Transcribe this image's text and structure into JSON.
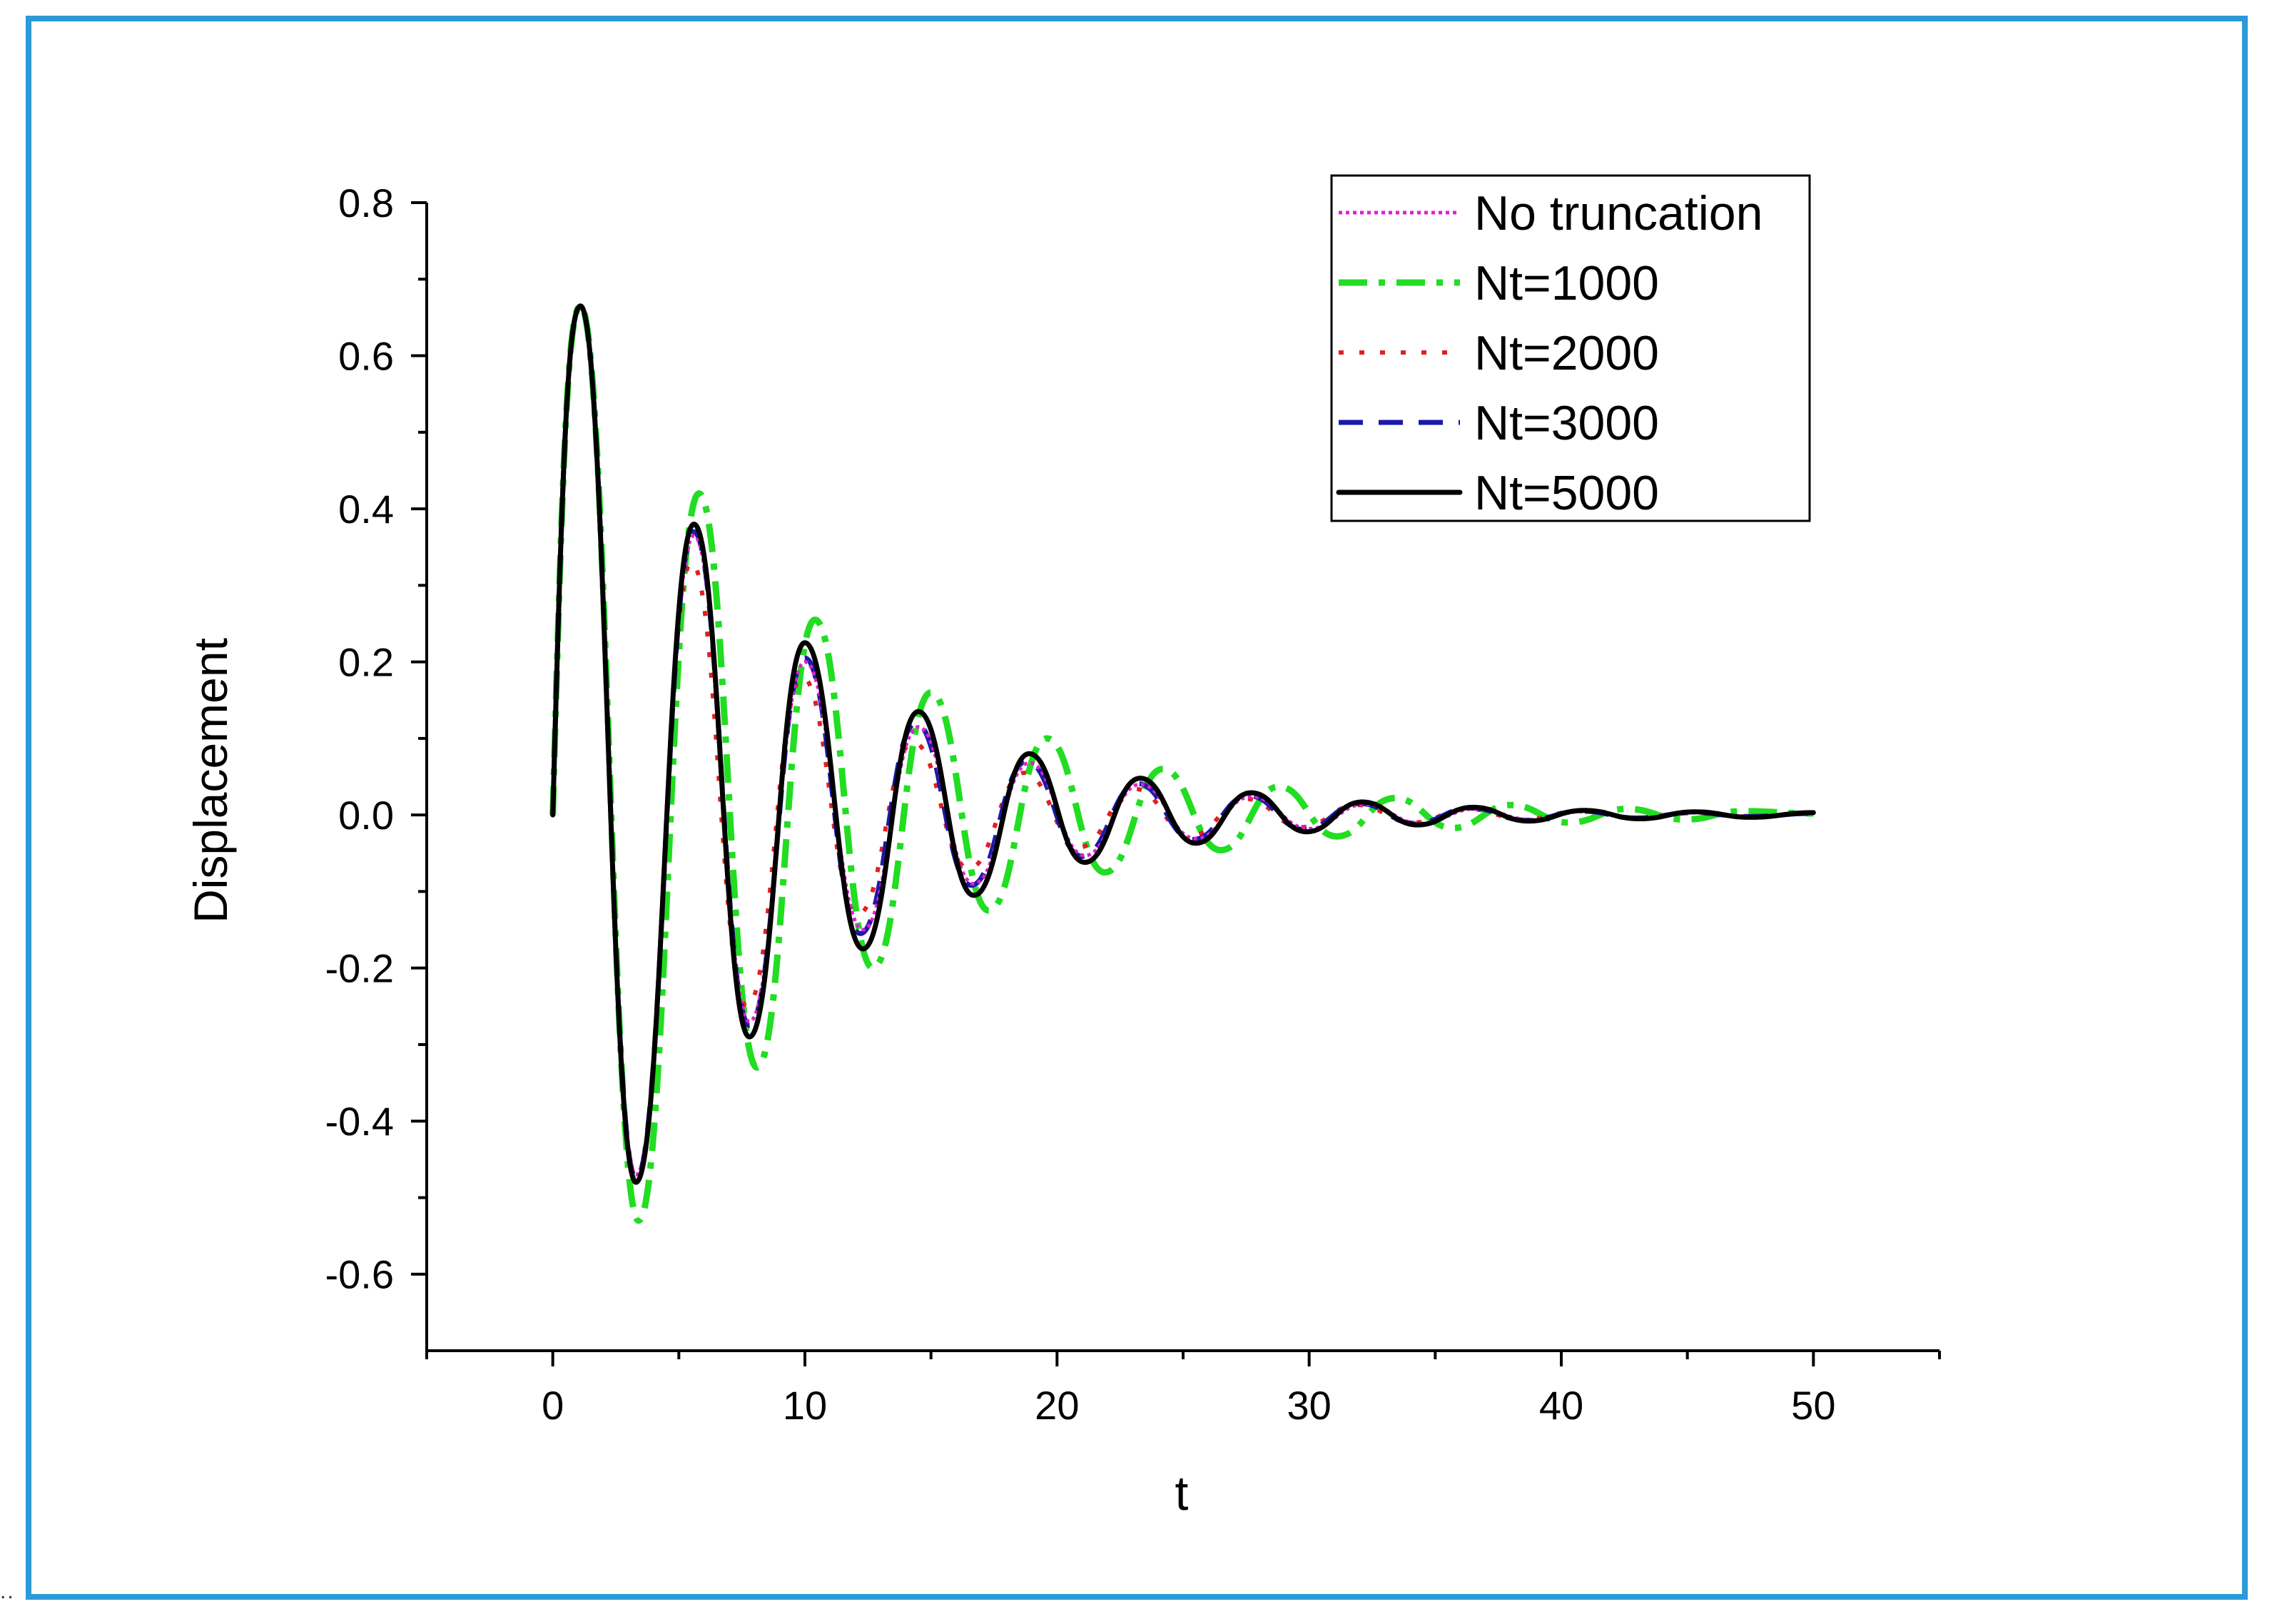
{
  "corner_mark": "..",
  "chart_data": {
    "type": "line",
    "title": "",
    "xlabel": "t",
    "ylabel": "Displacement",
    "xlim": [
      -5,
      55
    ],
    "ylim": [
      -0.7,
      0.8
    ],
    "xticks": [
      0,
      10,
      20,
      30,
      40,
      50
    ],
    "xtick_labels": [
      "0",
      "10",
      "20",
      "30",
      "40",
      "50"
    ],
    "yticks": [
      0.8,
      0.6,
      0.4,
      0.2,
      0.0,
      -0.2,
      -0.4,
      -0.6
    ],
    "ytick_labels": [
      "0.8",
      "0.6",
      "0.4",
      "0.2",
      "0.0",
      "-0.2",
      "-0.4",
      "-0.6"
    ],
    "grid": false,
    "legend_position": "top-right",
    "series": [
      {
        "name": "No truncation",
        "color": "#e020d0",
        "style": "dotted",
        "x": [
          0,
          1.1,
          3.3,
          5.6,
          7.8,
          10.0,
          12.3,
          14.5,
          16.7,
          18.9,
          21.1,
          23.3,
          25.5,
          27.7,
          30.0,
          32.2,
          34.4,
          36.6,
          38.8,
          41.0,
          43.2,
          45.4,
          47.6,
          50.0
        ],
        "y": [
          0,
          0.665,
          -0.47,
          0.365,
          -0.27,
          0.2,
          -0.15,
          0.115,
          -0.09,
          0.068,
          -0.053,
          0.04,
          -0.031,
          0.024,
          -0.018,
          0.014,
          -0.011,
          0.008,
          -0.006,
          0.005,
          -0.004,
          0.003,
          -0.002,
          0.002
        ]
      },
      {
        "name": "Nt=1000",
        "color": "#22dd22",
        "style": "dashdot",
        "x": [
          0,
          1.1,
          3.4,
          5.8,
          8.1,
          10.4,
          12.7,
          15.0,
          17.3,
          19.6,
          21.9,
          24.2,
          26.5,
          28.8,
          31.1,
          33.4,
          35.7,
          38.0,
          40.3,
          42.6,
          44.9,
          47.2,
          50.0
        ],
        "y": [
          0,
          0.665,
          -0.53,
          0.42,
          -0.33,
          0.255,
          -0.2,
          0.16,
          -0.125,
          0.1,
          -0.075,
          0.06,
          -0.046,
          0.037,
          -0.028,
          0.022,
          -0.017,
          0.013,
          -0.01,
          0.008,
          -0.006,
          0.005,
          0.002
        ]
      },
      {
        "name": "Nt=2000",
        "color": "#e02020",
        "style": "dotted-wide",
        "x": [
          0,
          1.1,
          3.3,
          5.5,
          7.7,
          9.9,
          12.1,
          14.3,
          16.5,
          18.7,
          20.9,
          23.1,
          25.3,
          27.5,
          29.7,
          31.9,
          34.1,
          36.3,
          38.5,
          40.7,
          42.9,
          45.1,
          47.3,
          50.0
        ],
        "y": [
          0,
          0.665,
          -0.48,
          0.33,
          -0.25,
          0.18,
          -0.13,
          0.095,
          -0.07,
          0.055,
          -0.042,
          0.034,
          -0.027,
          0.021,
          -0.016,
          0.013,
          -0.01,
          0.008,
          -0.006,
          0.005,
          -0.004,
          0.003,
          -0.002,
          0.002
        ]
      },
      {
        "name": "Nt=3000",
        "color": "#1a1aaa",
        "style": "dashed",
        "x": [
          0,
          1.1,
          3.3,
          5.6,
          7.8,
          10.0,
          12.2,
          14.4,
          16.6,
          18.8,
          21.0,
          23.2,
          25.4,
          27.6,
          29.8,
          32.0,
          34.2,
          36.4,
          38.6,
          40.8,
          43.0,
          45.2,
          47.4,
          50.0
        ],
        "y": [
          0,
          0.665,
          -0.475,
          0.37,
          -0.275,
          0.205,
          -0.155,
          0.12,
          -0.092,
          0.07,
          -0.054,
          0.041,
          -0.032,
          0.025,
          -0.019,
          0.015,
          -0.011,
          0.009,
          -0.007,
          0.005,
          -0.004,
          0.003,
          -0.002,
          0.002
        ]
      },
      {
        "name": "Nt=5000",
        "color": "#000000",
        "style": "solid",
        "x": [
          0,
          1.1,
          3.3,
          5.6,
          7.8,
          10.0,
          12.3,
          14.5,
          16.7,
          18.9,
          21.1,
          23.3,
          25.5,
          27.7,
          29.9,
          32.1,
          34.3,
          36.5,
          38.7,
          40.9,
          43.1,
          45.3,
          47.5,
          50.0
        ],
        "y": [
          0,
          0.665,
          -0.48,
          0.38,
          -0.29,
          0.225,
          -0.175,
          0.135,
          -0.105,
          0.08,
          -0.062,
          0.048,
          -0.037,
          0.029,
          -0.022,
          0.017,
          -0.013,
          0.01,
          -0.008,
          0.006,
          -0.005,
          0.004,
          -0.003,
          0.003
        ]
      }
    ]
  }
}
